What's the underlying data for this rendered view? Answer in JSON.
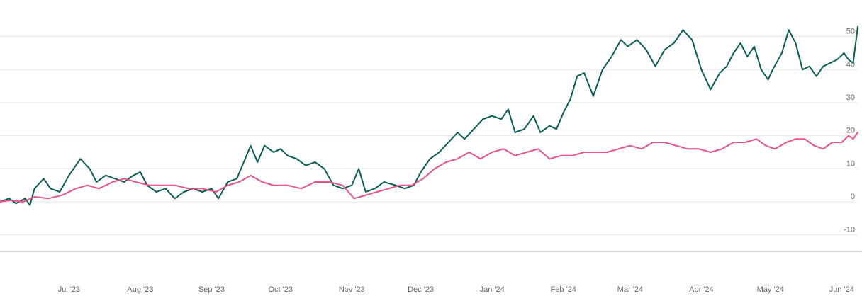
{
  "chart_data": {
    "type": "line",
    "title": "",
    "xlabel": "",
    "ylabel": "",
    "ylim": [
      -15,
      60
    ],
    "yticks": [
      -10,
      0,
      10,
      20,
      30,
      40,
      50
    ],
    "xticks": [
      "Jul '23",
      "Aug '23",
      "Sep '23",
      "Oct '23",
      "Nov '23",
      "Dec '23",
      "Jan '24",
      "Feb '24",
      "Mar '24",
      "Apr '24",
      "May '24",
      "Jun '24"
    ],
    "grid": "horizontal",
    "legend": "none",
    "colors": {
      "series_1": "#0b5e57",
      "series_2": "#e6548a",
      "grid": "#e6e6e6",
      "axis": "#c8c8c8",
      "text": "#666666"
    },
    "series": [
      {
        "color": "#0b5e57",
        "points": [
          [
            "2023-06-01",
            0
          ],
          [
            "2023-06-05",
            1
          ],
          [
            "2023-06-08",
            -0.5
          ],
          [
            "2023-06-12",
            1
          ],
          [
            "2023-06-14",
            -1
          ],
          [
            "2023-06-16",
            4
          ],
          [
            "2023-06-20",
            7
          ],
          [
            "2023-06-23",
            4
          ],
          [
            "2023-06-27",
            3
          ],
          [
            "2023-07-01",
            8
          ],
          [
            "2023-07-06",
            13
          ],
          [
            "2023-07-10",
            10
          ],
          [
            "2023-07-13",
            6
          ],
          [
            "2023-07-17",
            8
          ],
          [
            "2023-07-21",
            7
          ],
          [
            "2023-07-25",
            6
          ],
          [
            "2023-07-29",
            8
          ],
          [
            "2023-08-01",
            9
          ],
          [
            "2023-08-04",
            5
          ],
          [
            "2023-08-08",
            3
          ],
          [
            "2023-08-12",
            4
          ],
          [
            "2023-08-16",
            1
          ],
          [
            "2023-08-20",
            3
          ],
          [
            "2023-08-24",
            4
          ],
          [
            "2023-08-28",
            3
          ],
          [
            "2023-09-01",
            4
          ],
          [
            "2023-09-04",
            1
          ],
          [
            "2023-09-08",
            6
          ],
          [
            "2023-09-12",
            7
          ],
          [
            "2023-09-15",
            12
          ],
          [
            "2023-09-18",
            17
          ],
          [
            "2023-09-21",
            12
          ],
          [
            "2023-09-24",
            17
          ],
          [
            "2023-09-28",
            15
          ],
          [
            "2023-10-01",
            16
          ],
          [
            "2023-10-04",
            14
          ],
          [
            "2023-10-08",
            13
          ],
          [
            "2023-10-12",
            11
          ],
          [
            "2023-10-16",
            12
          ],
          [
            "2023-10-20",
            10
          ],
          [
            "2023-10-24",
            5
          ],
          [
            "2023-10-28",
            4
          ],
          [
            "2023-11-01",
            5
          ],
          [
            "2023-11-04",
            10
          ],
          [
            "2023-11-07",
            3
          ],
          [
            "2023-11-11",
            4
          ],
          [
            "2023-11-15",
            6
          ],
          [
            "2023-11-20",
            5
          ],
          [
            "2023-11-24",
            4
          ],
          [
            "2023-11-28",
            5
          ],
          [
            "2023-12-01",
            9
          ],
          [
            "2023-12-05",
            13
          ],
          [
            "2023-12-09",
            15
          ],
          [
            "2023-12-13",
            18
          ],
          [
            "2023-12-17",
            21
          ],
          [
            "2023-12-20",
            19
          ],
          [
            "2023-12-24",
            22
          ],
          [
            "2023-12-28",
            25
          ],
          [
            "2024-01-01",
            26
          ],
          [
            "2024-01-05",
            25
          ],
          [
            "2024-01-08",
            28
          ],
          [
            "2024-01-11",
            21
          ],
          [
            "2024-01-15",
            22
          ],
          [
            "2024-01-19",
            26
          ],
          [
            "2024-01-22",
            21
          ],
          [
            "2024-01-26",
            23
          ],
          [
            "2024-01-29",
            22
          ],
          [
            "2024-02-01",
            27
          ],
          [
            "2024-02-04",
            31
          ],
          [
            "2024-02-07",
            38
          ],
          [
            "2024-02-10",
            39
          ],
          [
            "2024-02-14",
            32
          ],
          [
            "2024-02-18",
            40
          ],
          [
            "2024-02-22",
            44
          ],
          [
            "2024-02-26",
            49
          ],
          [
            "2024-02-29",
            47
          ],
          [
            "2024-03-04",
            49
          ],
          [
            "2024-03-08",
            46
          ],
          [
            "2024-03-12",
            41
          ],
          [
            "2024-03-16",
            46
          ],
          [
            "2024-03-20",
            48
          ],
          [
            "2024-03-24",
            52
          ],
          [
            "2024-03-28",
            49
          ],
          [
            "2024-04-01",
            40
          ],
          [
            "2024-04-05",
            34
          ],
          [
            "2024-04-09",
            39
          ],
          [
            "2024-04-12",
            41
          ],
          [
            "2024-04-15",
            45
          ],
          [
            "2024-04-18",
            48
          ],
          [
            "2024-04-21",
            44
          ],
          [
            "2024-04-24",
            47
          ],
          [
            "2024-04-27",
            40
          ],
          [
            "2024-04-30",
            37
          ],
          [
            "2024-05-02",
            40
          ],
          [
            "2024-05-06",
            45
          ],
          [
            "2024-05-09",
            52
          ],
          [
            "2024-05-12",
            48
          ],
          [
            "2024-05-15",
            40
          ],
          [
            "2024-05-18",
            41
          ],
          [
            "2024-05-21",
            38
          ],
          [
            "2024-05-24",
            41
          ],
          [
            "2024-05-27",
            42
          ],
          [
            "2024-05-30",
            43
          ],
          [
            "2024-06-02",
            45
          ],
          [
            "2024-06-04",
            43
          ],
          [
            "2024-06-06",
            42
          ],
          [
            "2024-06-08",
            53
          ]
        ]
      },
      {
        "color": "#e6548a",
        "points": [
          [
            "2023-06-01",
            0
          ],
          [
            "2023-06-06",
            0.5
          ],
          [
            "2023-06-11",
            0
          ],
          [
            "2023-06-16",
            1.5
          ],
          [
            "2023-06-22",
            1
          ],
          [
            "2023-06-28",
            2
          ],
          [
            "2023-07-04",
            4
          ],
          [
            "2023-07-09",
            5
          ],
          [
            "2023-07-14",
            4
          ],
          [
            "2023-07-20",
            6
          ],
          [
            "2023-07-25",
            7
          ],
          [
            "2023-07-30",
            6
          ],
          [
            "2023-08-05",
            5
          ],
          [
            "2023-08-10",
            5
          ],
          [
            "2023-08-16",
            5
          ],
          [
            "2023-08-22",
            4
          ],
          [
            "2023-08-28",
            4
          ],
          [
            "2023-09-03",
            3
          ],
          [
            "2023-09-08",
            5
          ],
          [
            "2023-09-13",
            6
          ],
          [
            "2023-09-18",
            8
          ],
          [
            "2023-09-23",
            6
          ],
          [
            "2023-09-28",
            5
          ],
          [
            "2023-10-04",
            5
          ],
          [
            "2023-10-10",
            4
          ],
          [
            "2023-10-16",
            6
          ],
          [
            "2023-10-22",
            6
          ],
          [
            "2023-10-28",
            5
          ],
          [
            "2023-11-02",
            1
          ],
          [
            "2023-11-07",
            2
          ],
          [
            "2023-11-12",
            3
          ],
          [
            "2023-11-17",
            4
          ],
          [
            "2023-11-22",
            5
          ],
          [
            "2023-11-27",
            5
          ],
          [
            "2023-12-02",
            7
          ],
          [
            "2023-12-07",
            10
          ],
          [
            "2023-12-12",
            12
          ],
          [
            "2023-12-17",
            13
          ],
          [
            "2023-12-22",
            15
          ],
          [
            "2023-12-27",
            13
          ],
          [
            "2024-01-01",
            15
          ],
          [
            "2024-01-06",
            16
          ],
          [
            "2024-01-11",
            14
          ],
          [
            "2024-01-16",
            15
          ],
          [
            "2024-01-21",
            16
          ],
          [
            "2024-01-26",
            13
          ],
          [
            "2024-01-31",
            14
          ],
          [
            "2024-02-05",
            14
          ],
          [
            "2024-02-10",
            15
          ],
          [
            "2024-02-15",
            15
          ],
          [
            "2024-02-20",
            15
          ],
          [
            "2024-02-25",
            16
          ],
          [
            "2024-03-01",
            17
          ],
          [
            "2024-03-06",
            16
          ],
          [
            "2024-03-11",
            18
          ],
          [
            "2024-03-16",
            18
          ],
          [
            "2024-03-21",
            17
          ],
          [
            "2024-03-26",
            16
          ],
          [
            "2024-03-31",
            16
          ],
          [
            "2024-04-05",
            15
          ],
          [
            "2024-04-10",
            16
          ],
          [
            "2024-04-15",
            18
          ],
          [
            "2024-04-20",
            18
          ],
          [
            "2024-04-25",
            19
          ],
          [
            "2024-04-29",
            17
          ],
          [
            "2024-05-03",
            16
          ],
          [
            "2024-05-08",
            18
          ],
          [
            "2024-05-12",
            19
          ],
          [
            "2024-05-16",
            19
          ],
          [
            "2024-05-20",
            17
          ],
          [
            "2024-05-24",
            16
          ],
          [
            "2024-05-28",
            18
          ],
          [
            "2024-06-01",
            18
          ],
          [
            "2024-06-04",
            20
          ],
          [
            "2024-06-06",
            19
          ],
          [
            "2024-06-08",
            21
          ]
        ]
      }
    ]
  }
}
